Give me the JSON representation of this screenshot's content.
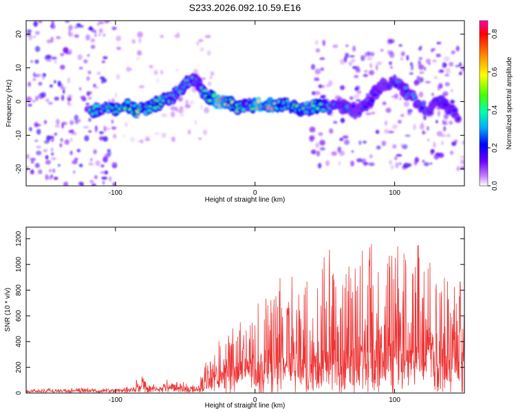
{
  "title": "S233.2026.092.10.59.E16",
  "colors": {
    "snr_line": "#ee3333",
    "axis": "#000000"
  },
  "chart_data": [
    {
      "type": "heatmap",
      "xlabel": "Height of straight line (km)",
      "ylabel": "Frequency (Hz)",
      "xlim": [
        -164,
        150
      ],
      "ylim": [
        -25,
        24
      ],
      "xticks": [
        -100,
        0,
        100
      ],
      "xtick_labels": [
        "-100",
        "0",
        "100"
      ],
      "yticks": [
        -20,
        -10,
        0,
        10,
        20
      ],
      "ytick_labels": [
        "-20",
        "-10",
        "0",
        "10",
        "20"
      ],
      "colorbar": {
        "label": "Normalized spectral amplitude",
        "range": [
          0.0,
          0.87
        ],
        "ticks": [
          0.0,
          0.2,
          0.4,
          0.6,
          0.8
        ],
        "tick_labels": [
          "0.0",
          "0.2",
          "0.4",
          "0.6",
          "0.8"
        ]
      },
      "ridge": [
        {
          "x": -118,
          "f": -3,
          "a": 0.5
        },
        {
          "x": -110,
          "f": -2,
          "a": 0.4
        },
        {
          "x": -100,
          "f": -2,
          "a": 0.5
        },
        {
          "x": -92,
          "f": -1,
          "a": 0.5
        },
        {
          "x": -85,
          "f": -3,
          "a": 0.55
        },
        {
          "x": -78,
          "f": -2,
          "a": 0.45
        },
        {
          "x": -72,
          "f": -1,
          "a": 0.5
        },
        {
          "x": -66,
          "f": 0,
          "a": 0.45
        },
        {
          "x": -60,
          "f": 1,
          "a": 0.4
        },
        {
          "x": -55,
          "f": 3,
          "a": 0.35
        },
        {
          "x": -50,
          "f": 5,
          "a": 0.4
        },
        {
          "x": -45,
          "f": 7,
          "a": 0.35
        },
        {
          "x": -40,
          "f": 5,
          "a": 0.3
        },
        {
          "x": -36,
          "f": 2,
          "a": 0.45
        },
        {
          "x": -30,
          "f": 1,
          "a": 0.55
        },
        {
          "x": -26,
          "f": 0,
          "a": 0.85
        },
        {
          "x": -20,
          "f": 0,
          "a": 0.65
        },
        {
          "x": -16,
          "f": -1,
          "a": 0.55
        },
        {
          "x": -10,
          "f": -2,
          "a": 0.5
        },
        {
          "x": -4,
          "f": -1,
          "a": 0.35
        },
        {
          "x": 2,
          "f": -1,
          "a": 0.85
        },
        {
          "x": 8,
          "f": -1,
          "a": 0.6
        },
        {
          "x": 12,
          "f": -1,
          "a": 0.75
        },
        {
          "x": 18,
          "f": -1,
          "a": 0.5
        },
        {
          "x": 24,
          "f": -1,
          "a": 0.45
        },
        {
          "x": 32,
          "f": -2,
          "a": 0.5
        },
        {
          "x": 38,
          "f": -2,
          "a": 0.4
        },
        {
          "x": 46,
          "f": -1,
          "a": 0.55
        },
        {
          "x": 52,
          "f": -2,
          "a": 0.4
        },
        {
          "x": 58,
          "f": -1,
          "a": 0.3
        },
        {
          "x": 66,
          "f": -2,
          "a": 0.3
        },
        {
          "x": 74,
          "f": -3,
          "a": 0.25
        },
        {
          "x": 80,
          "f": -1,
          "a": 0.3
        },
        {
          "x": 86,
          "f": 3,
          "a": 0.3
        },
        {
          "x": 92,
          "f": 5,
          "a": 0.25
        },
        {
          "x": 100,
          "f": 6,
          "a": 0.28
        },
        {
          "x": 108,
          "f": 3,
          "a": 0.3
        },
        {
          "x": 116,
          "f": 0,
          "a": 0.3
        },
        {
          "x": 124,
          "f": -3,
          "a": 0.25
        },
        {
          "x": 132,
          "f": 0,
          "a": 0.3
        },
        {
          "x": 140,
          "f": -2,
          "a": 0.3
        },
        {
          "x": 146,
          "f": -5,
          "a": 0.25
        }
      ]
    },
    {
      "type": "line",
      "xlabel": "Height of straight line (km)",
      "ylabel": "SNR (10 * v/v)",
      "xlim": [
        -164,
        150
      ],
      "ylim": [
        0,
        1290
      ],
      "xticks": [
        -100,
        0,
        100
      ],
      "xtick_labels": [
        "-100",
        "0",
        "100"
      ],
      "yticks": [
        0,
        200,
        400,
        600,
        800,
        1000,
        1200
      ],
      "ytick_labels": [
        "0",
        "200",
        "400",
        "600",
        "800",
        "1000",
        "1200"
      ],
      "series": [
        {
          "name": "SNR",
          "envelope": [
            {
              "x": -164,
              "base": 20,
              "amp": 15
            },
            {
              "x": -100,
              "base": 22,
              "amp": 18
            },
            {
              "x": -90,
              "base": 30,
              "amp": 25
            },
            {
              "x": -82,
              "base": 60,
              "amp": 80
            },
            {
              "x": -72,
              "base": 40,
              "amp": 40
            },
            {
              "x": -60,
              "base": 50,
              "amp": 60
            },
            {
              "x": -42,
              "base": 30,
              "amp": 30
            },
            {
              "x": -34,
              "base": 80,
              "amp": 180
            },
            {
              "x": -25,
              "base": 150,
              "amp": 300
            },
            {
              "x": -10,
              "base": 230,
              "amp": 330
            },
            {
              "x": 5,
              "base": 250,
              "amp": 450
            },
            {
              "x": 20,
              "base": 280,
              "amp": 700
            },
            {
              "x": 40,
              "base": 280,
              "amp": 800
            },
            {
              "x": 60,
              "base": 300,
              "amp": 850
            },
            {
              "x": 80,
              "base": 300,
              "amp": 900
            },
            {
              "x": 100,
              "base": 320,
              "amp": 900
            },
            {
              "x": 110,
              "base": 330,
              "amp": 940
            },
            {
              "x": 125,
              "base": 320,
              "amp": 800
            },
            {
              "x": 140,
              "base": 300,
              "amp": 650
            },
            {
              "x": 150,
              "base": 300,
              "amp": 600
            }
          ]
        }
      ]
    }
  ]
}
